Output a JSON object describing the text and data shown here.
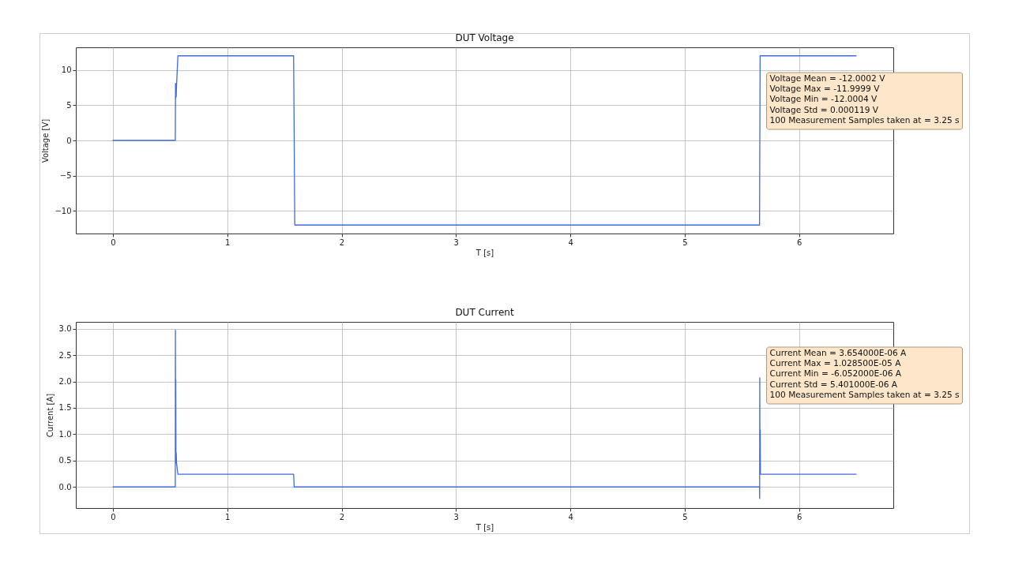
{
  "chart_data": [
    {
      "type": "line",
      "title": "DUT Voltage",
      "xlabel": "T [s]",
      "ylabel": "Voltage [V]",
      "color": "#4169e1",
      "x": [
        0,
        0.545,
        0.547,
        0.549,
        0.551,
        0.553,
        0.555,
        0.568,
        1.58,
        1.59,
        5.655,
        5.66,
        6.5
      ],
      "values": [
        0,
        0,
        8.1,
        6,
        8,
        6.2,
        7.5,
        12,
        12,
        -12,
        -12,
        12,
        12
      ],
      "xlim": [
        -0.325,
        6.825
      ],
      "xticks": [
        0,
        1,
        2,
        3,
        4,
        5,
        6
      ],
      "ylim": [
        -13.2,
        13.2
      ],
      "yticks": [
        -10,
        -5,
        0,
        5,
        10
      ],
      "grid": true,
      "annotations": [
        "Voltage Mean = -12.0002 V",
        "Voltage Max = -11.9999 V",
        "Voltage Min = -12.0004 V",
        "Voltage Std = 0.000119 V",
        "100 Measurement Samples taken at = 3.25 s"
      ]
    },
    {
      "type": "line",
      "title": "DUT Current",
      "xlabel": "T [s]",
      "ylabel": "Current [A]",
      "color": "#4169e1",
      "x": [
        0,
        0.545,
        0.546,
        0.548,
        0.549,
        0.551,
        0.553,
        0.556,
        0.568,
        1.58,
        1.585,
        5.655,
        5.656,
        5.657,
        5.659,
        5.661,
        5.663,
        6.5
      ],
      "values": [
        0,
        0,
        2.97,
        0.45,
        2.04,
        0.5,
        0.65,
        0.45,
        0.24,
        0.24,
        0,
        0,
        -0.22,
        2.07,
        0.3,
        1.08,
        0.24,
        0.24
      ],
      "xlim": [
        -0.325,
        6.825
      ],
      "xticks": [
        0,
        1,
        2,
        3,
        4,
        5,
        6
      ],
      "ylim": [
        -0.4,
        3.13
      ],
      "yticks": [
        {
          "value": 0,
          "label": "0.0"
        },
        0.5,
        {
          "value": 1,
          "label": "1.0"
        },
        1.5,
        {
          "value": 2,
          "label": "2.0"
        },
        2.5,
        {
          "value": 3,
          "label": "3.0"
        }
      ],
      "grid": true,
      "annotations": [
        "Current Mean = 3.654000E-06 A",
        "Current Max = 1.028500E-05 A",
        "Current Min = -6.052000E-06 A",
        "Current Std = 5.401000E-06 A",
        "100 Measurement Samples taken at = 3.25 s"
      ]
    }
  ]
}
